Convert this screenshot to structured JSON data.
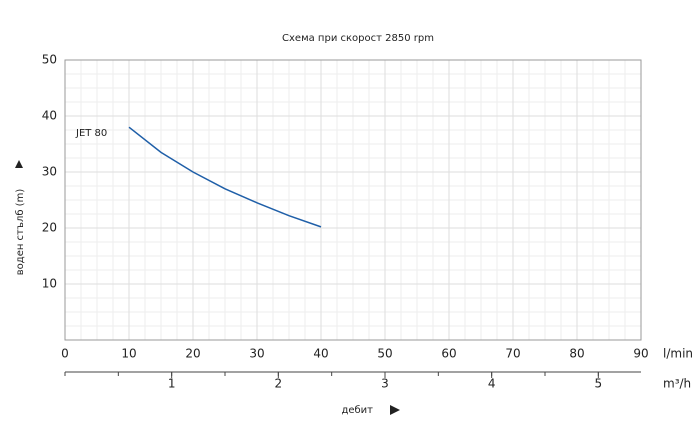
{
  "chart_data": {
    "type": "line",
    "title": "Схема при скорост 2850 rpm",
    "y_label": "воден стълб (m)",
    "x_label": "l/min",
    "x2_label": "m³/h",
    "x_title": "дебит",
    "x": [
      10,
      15,
      20,
      25,
      30,
      35,
      40
    ],
    "series": [
      {
        "name": "JET 80",
        "color": "#1f5fa8",
        "values": [
          38,
          33.5,
          30,
          27,
          24.5,
          22.2,
          20.2
        ]
      }
    ],
    "xlim": [
      0,
      90
    ],
    "xticks": [
      0,
      10,
      20,
      30,
      40,
      50,
      60,
      70,
      80,
      90
    ],
    "ylim": [
      0,
      50
    ],
    "yticks": [
      10,
      20,
      30,
      40,
      50
    ],
    "x2lim": [
      0,
      5.4
    ],
    "x2ticks": [
      1,
      2,
      3,
      4,
      5
    ],
    "grid": true,
    "minor_divisions": 4,
    "x2_minor_divisions": 2
  }
}
